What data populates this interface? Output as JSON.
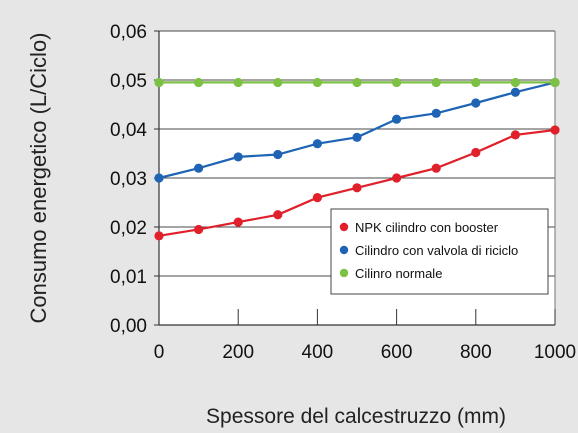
{
  "chart_data": {
    "type": "line",
    "title": "",
    "xlabel": "Spessore del calcestruzzo (mm)",
    "ylabel": "Consumo energetico  (L/Ciclo)",
    "xlim": [
      0,
      1000
    ],
    "ylim": [
      0,
      0.06
    ],
    "x_ticks": [
      0,
      200,
      400,
      600,
      800,
      1000
    ],
    "x_tick_labels": [
      "0",
      "200",
      "400",
      "600",
      "800",
      "1000"
    ],
    "y_ticks": [
      0,
      0.01,
      0.02,
      0.03,
      0.04,
      0.05,
      0.06
    ],
    "y_tick_labels": [
      "0,00",
      "0,01",
      "0,02",
      "0,03",
      "0,04",
      "0,05",
      "0,06"
    ],
    "grid": "horizontal",
    "legend_position": "bottom-right",
    "x": [
      0,
      100,
      200,
      300,
      400,
      500,
      600,
      700,
      800,
      900,
      1000
    ],
    "series": [
      {
        "name": "NPK cilindro con booster",
        "color": "#e0202a",
        "values": [
          0.0182,
          0.0195,
          0.021,
          0.0225,
          0.026,
          0.028,
          0.03,
          0.032,
          0.0352,
          0.0388,
          0.0398
        ]
      },
      {
        "name": "Cilindro con valvola di riciclo",
        "color": "#1f64b4",
        "values": [
          0.03,
          0.032,
          0.0343,
          0.0348,
          0.037,
          0.0383,
          0.042,
          0.0432,
          0.0453,
          0.0475,
          0.0495
        ]
      },
      {
        "name": "Cilinro normale",
        "color": "#7cc143",
        "values": [
          0.0495,
          0.0495,
          0.0495,
          0.0495,
          0.0495,
          0.0495,
          0.0495,
          0.0495,
          0.0495,
          0.0495,
          0.0495
        ]
      }
    ]
  }
}
